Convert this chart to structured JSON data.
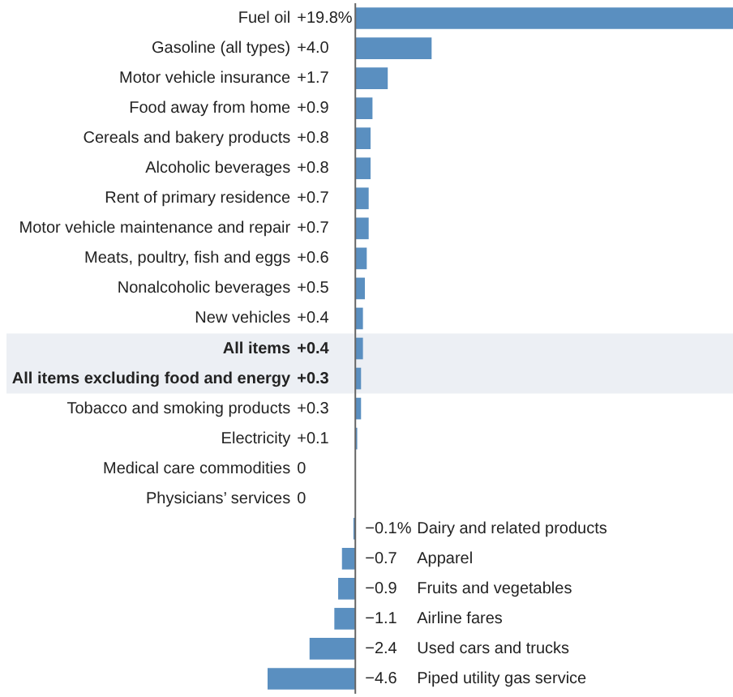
{
  "chart_data": {
    "type": "bar",
    "orientation": "horizontal",
    "categories": [
      "Fuel oil",
      "Gasoline (all types)",
      "Motor vehicle insurance",
      "Food away from home",
      "Cereals and bakery products",
      "Alcoholic beverages",
      "Rent of primary residence",
      "Motor vehicle maintenance and repair",
      "Meats, poultry, fish and eggs",
      "Nonalcoholic beverages",
      "New vehicles",
      "All items",
      "All items excluding food and energy",
      "Tobacco and smoking products",
      "Electricity",
      "Medical care commodities",
      "Physicians’ services",
      "Dairy and related products",
      "Apparel",
      "Fruits and vegetables",
      "Airline fares",
      "Used cars and trucks",
      "Piped utility gas service"
    ],
    "values": [
      19.8,
      4.0,
      1.7,
      0.9,
      0.8,
      0.8,
      0.7,
      0.7,
      0.6,
      0.5,
      0.4,
      0.4,
      0.3,
      0.3,
      0.1,
      0,
      0,
      -0.1,
      -0.7,
      -0.9,
      -1.1,
      -2.4,
      -4.6
    ],
    "value_labels": [
      "+19.8%",
      "+4.0",
      "+1.7",
      "+0.9",
      "+0.8",
      "+0.8",
      "+0.7",
      "+0.7",
      "+0.6",
      "+0.5",
      "+0.4",
      "+0.4",
      "+0.3",
      "+0.3",
      "+0.1",
      "0",
      "0",
      "−0.1%",
      "−0.7",
      "−0.9",
      "−1.1",
      "−2.4",
      "−4.6"
    ],
    "color": "#5a8fc0",
    "bands": [
      {
        "axis": "y",
        "from": "All items",
        "to": "All items excluding food and energy",
        "color": "#eceff4"
      }
    ],
    "legend": false
  }
}
